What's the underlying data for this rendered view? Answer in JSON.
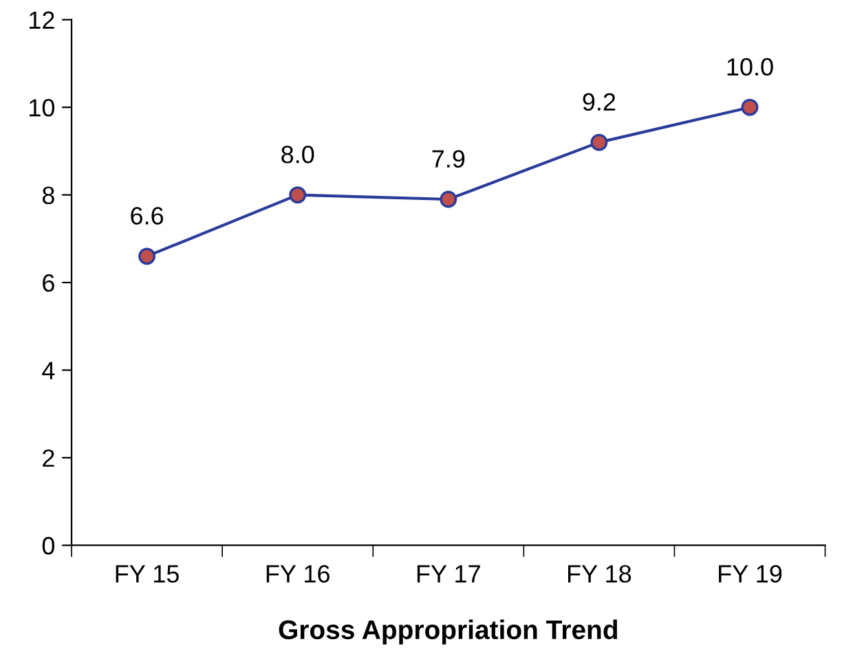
{
  "chart_data": {
    "type": "line",
    "title": "Gross Appropriation Trend",
    "categories": [
      "FY 15",
      "FY 16",
      "FY 17",
      "FY 18",
      "FY 19"
    ],
    "series": [
      {
        "color": "#2b3b9a",
        "colors": [
          "#c0504d",
          "#c0504d",
          "#c0504d",
          "#c0504d",
          "#c0504d"
        ],
        "values": [
          6.6,
          8.0,
          7.9,
          9.2,
          10.0
        ],
        "value_labels": [
          "6.6",
          "8.0",
          "7.9",
          "9.2",
          "10.0"
        ]
      }
    ],
    "ylim": [
      0,
      12
    ],
    "yticks": [
      0,
      2,
      4,
      6,
      8,
      10,
      12
    ],
    "grid": false,
    "marker": "circle",
    "line_style": "solid"
  }
}
